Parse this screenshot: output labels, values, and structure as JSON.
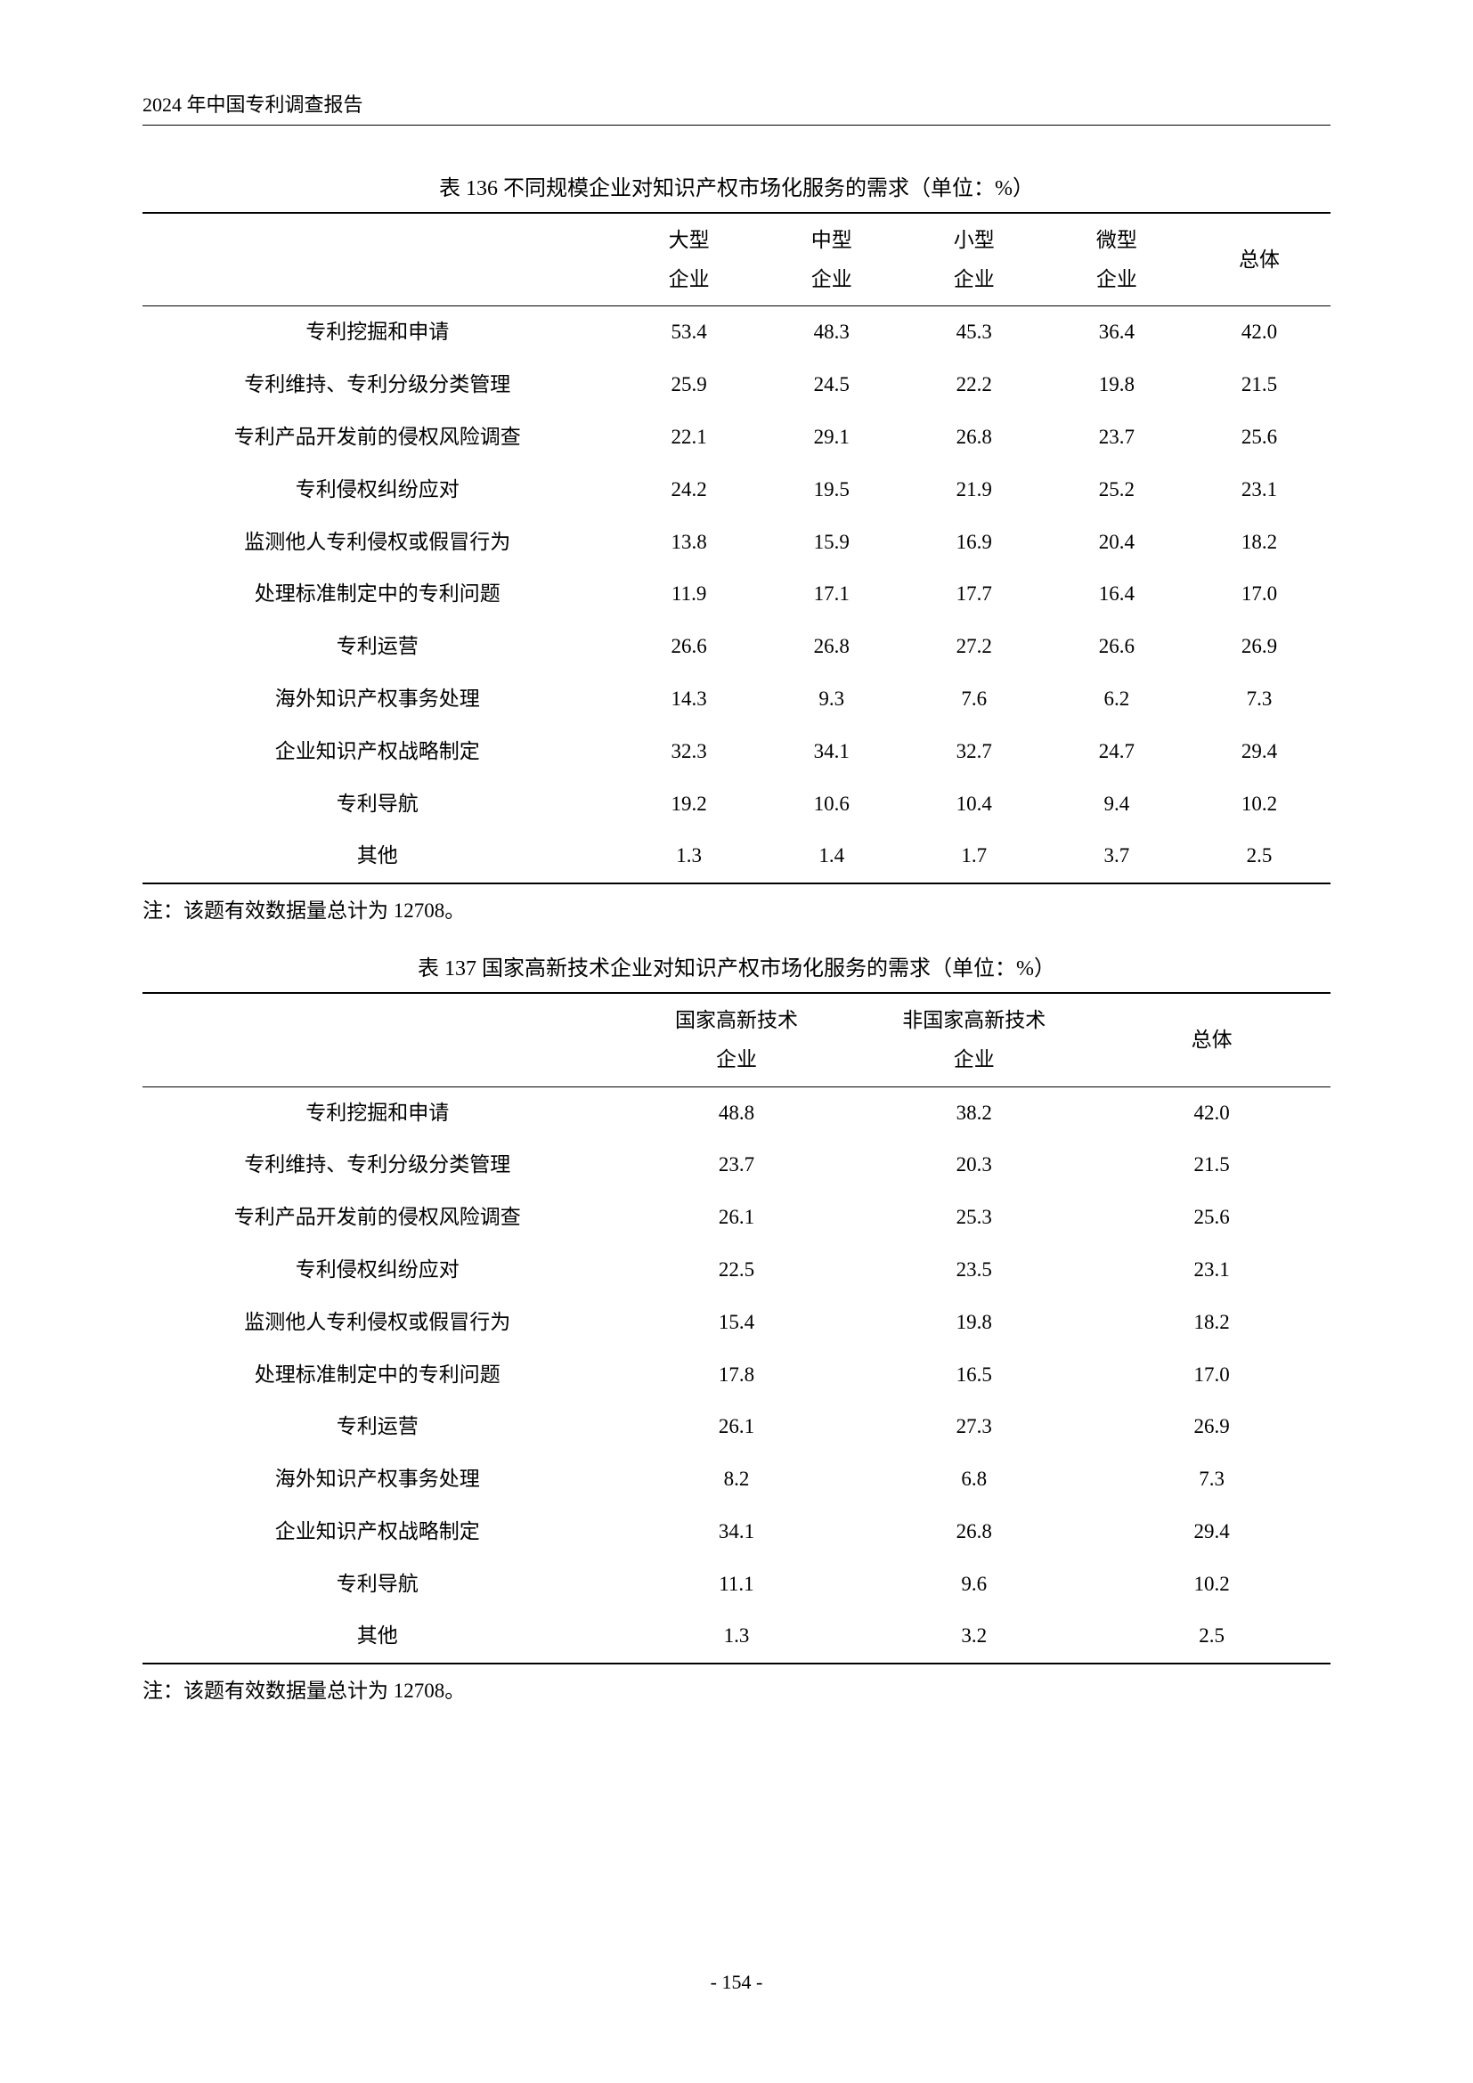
{
  "header": "2024 年中国专利调查报告",
  "page_number": "- 154 -",
  "table136": {
    "title": "表 136  不同规模企业对知识产权市场化服务的需求（单位：%）",
    "columns_blank": "",
    "columns": [
      "大型\n企业",
      "中型\n企业",
      "小型\n企业",
      "微型\n企业",
      "总体"
    ],
    "rows": [
      {
        "label": "专利挖掘和申请",
        "v": [
          "53.4",
          "48.3",
          "45.3",
          "36.4",
          "42.0"
        ]
      },
      {
        "label": "专利维持、专利分级分类管理",
        "v": [
          "25.9",
          "24.5",
          "22.2",
          "19.8",
          "21.5"
        ]
      },
      {
        "label": "专利产品开发前的侵权风险调查",
        "v": [
          "22.1",
          "29.1",
          "26.8",
          "23.7",
          "25.6"
        ]
      },
      {
        "label": "专利侵权纠纷应对",
        "v": [
          "24.2",
          "19.5",
          "21.9",
          "25.2",
          "23.1"
        ]
      },
      {
        "label": "监测他人专利侵权或假冒行为",
        "v": [
          "13.8",
          "15.9",
          "16.9",
          "20.4",
          "18.2"
        ]
      },
      {
        "label": "处理标准制定中的专利问题",
        "v": [
          "11.9",
          "17.1",
          "17.7",
          "16.4",
          "17.0"
        ]
      },
      {
        "label": "专利运营",
        "v": [
          "26.6",
          "26.8",
          "27.2",
          "26.6",
          "26.9"
        ]
      },
      {
        "label": "海外知识产权事务处理",
        "v": [
          "14.3",
          "9.3",
          "7.6",
          "6.2",
          "7.3"
        ]
      },
      {
        "label": "企业知识产权战略制定",
        "v": [
          "32.3",
          "34.1",
          "32.7",
          "24.7",
          "29.4"
        ]
      },
      {
        "label": "专利导航",
        "v": [
          "19.2",
          "10.6",
          "10.4",
          "9.4",
          "10.2"
        ]
      },
      {
        "label": "其他",
        "v": [
          "1.3",
          "1.4",
          "1.7",
          "3.7",
          "2.5"
        ]
      }
    ],
    "note": "注：该题有效数据量总计为 12708。"
  },
  "table137": {
    "title": "表 137  国家高新技术企业对知识产权市场化服务的需求（单位：%）",
    "columns_blank": "",
    "columns": [
      "国家高新技术\n企业",
      "非国家高新技术\n企业",
      "总体"
    ],
    "rows": [
      {
        "label": "专利挖掘和申请",
        "v": [
          "48.8",
          "38.2",
          "42.0"
        ]
      },
      {
        "label": "专利维持、专利分级分类管理",
        "v": [
          "23.7",
          "20.3",
          "21.5"
        ]
      },
      {
        "label": "专利产品开发前的侵权风险调查",
        "v": [
          "26.1",
          "25.3",
          "25.6"
        ]
      },
      {
        "label": "专利侵权纠纷应对",
        "v": [
          "22.5",
          "23.5",
          "23.1"
        ]
      },
      {
        "label": "监测他人专利侵权或假冒行为",
        "v": [
          "15.4",
          "19.8",
          "18.2"
        ]
      },
      {
        "label": "处理标准制定中的专利问题",
        "v": [
          "17.8",
          "16.5",
          "17.0"
        ]
      },
      {
        "label": "专利运营",
        "v": [
          "26.1",
          "27.3",
          "26.9"
        ]
      },
      {
        "label": "海外知识产权事务处理",
        "v": [
          "8.2",
          "6.8",
          "7.3"
        ]
      },
      {
        "label": "企业知识产权战略制定",
        "v": [
          "34.1",
          "26.8",
          "29.4"
        ]
      },
      {
        "label": "专利导航",
        "v": [
          "11.1",
          "9.6",
          "10.2"
        ]
      },
      {
        "label": "其他",
        "v": [
          "1.3",
          "3.2",
          "2.5"
        ]
      }
    ],
    "note": "注：该题有效数据量总计为 12708。"
  },
  "style": {
    "col136_widths": [
      "40%",
      "12%",
      "12%",
      "12%",
      "12%",
      "12%"
    ],
    "col137_widths": [
      "40%",
      "20%",
      "20%",
      "20%"
    ]
  }
}
